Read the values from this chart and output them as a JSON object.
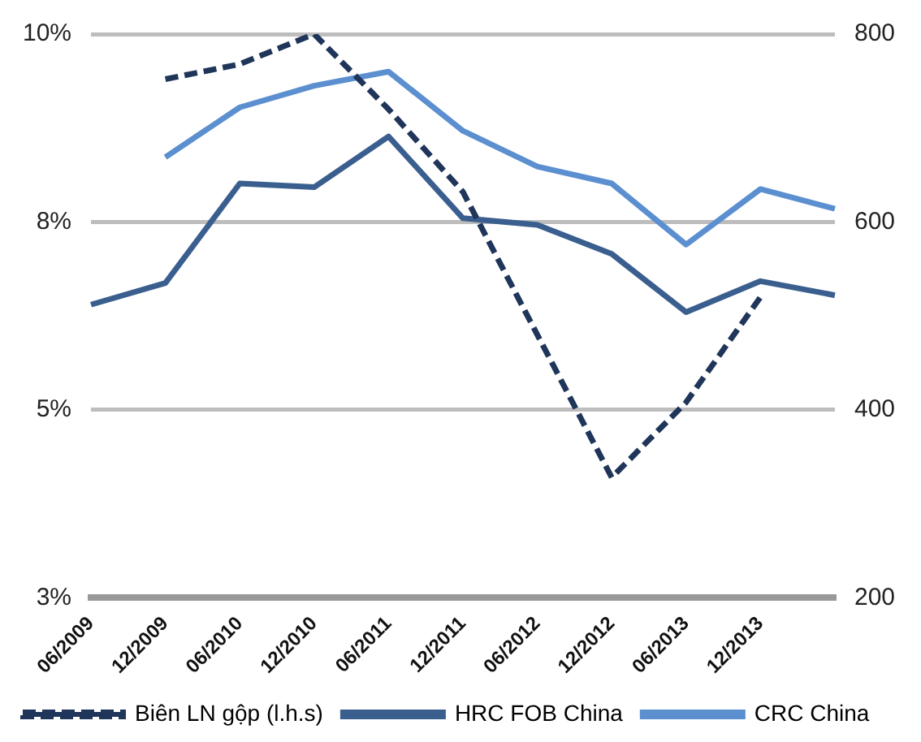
{
  "chart_data": {
    "type": "line",
    "categories": [
      "06/2009",
      "12/2009",
      "06/2010",
      "12/2010",
      "06/2011",
      "12/2011",
      "06/2012",
      "12/2012",
      "06/2013",
      "12/2013",
      null
    ],
    "series": [
      {
        "name": "Biên LN gộp (l.h.s)",
        "color": "#1f3559",
        "line_style": "dashed",
        "values": [
          null,
          9.4,
          9.6,
          10.0,
          9.0,
          7.9,
          6.0,
          4.1,
          5.1,
          6.5,
          null
        ]
      },
      {
        "name": "HRC FOB China",
        "color": "#3a5f8f",
        "axis": "y2",
        "values": [
          512,
          535,
          641,
          637,
          691,
          604,
          597,
          566,
          504,
          537,
          522
        ]
      },
      {
        "name": "CRC China",
        "color": "#5b8fd0",
        "axis": "y2",
        "values": [
          null,
          669,
          722,
          745,
          760,
          697,
          659,
          641,
          576,
          635,
          614
        ]
      }
    ],
    "ylim": [
      2.5,
      10
    ],
    "yticks": [
      {
        "value": 2.5,
        "label": "3%"
      },
      {
        "value": 5,
        "label": "5%"
      },
      {
        "value": 7.5,
        "label": "8%"
      },
      {
        "value": 10,
        "label": "10%"
      }
    ],
    "y2lim": [
      200,
      800
    ],
    "y2ticks": [
      200,
      400,
      600,
      800
    ],
    "grid": "y",
    "legend": "bottom",
    "marker": "none",
    "line_style": "solid"
  }
}
